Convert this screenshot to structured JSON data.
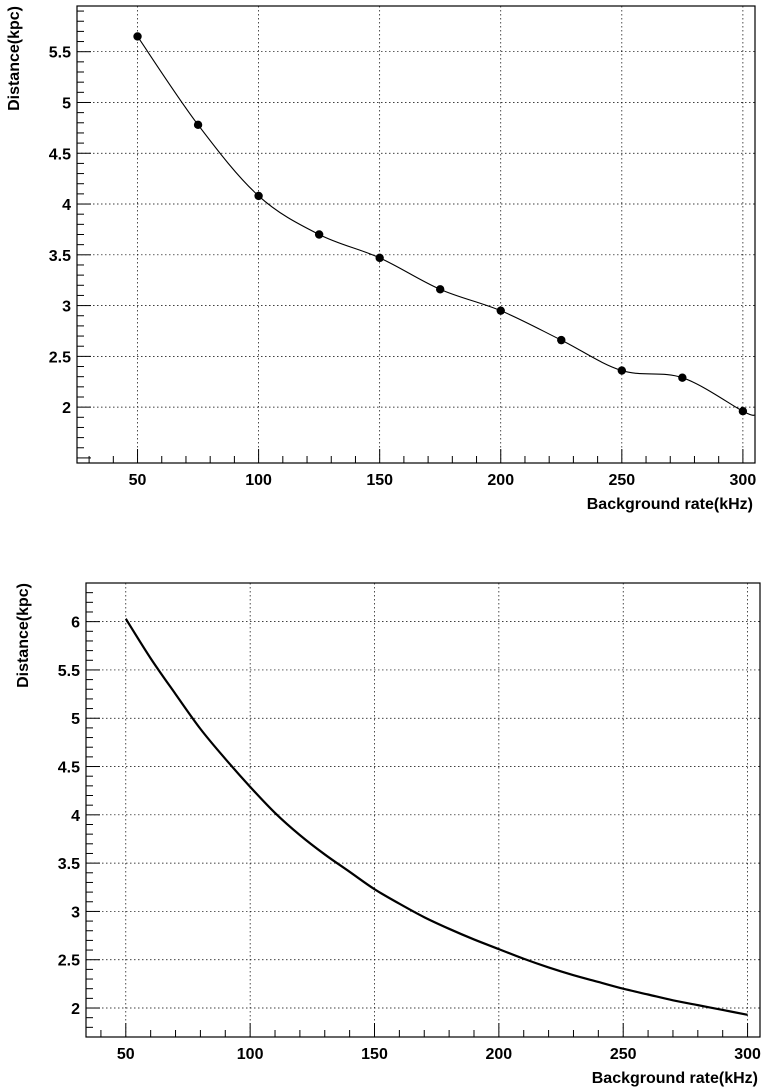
{
  "chart_data": [
    {
      "type": "scatter",
      "title": "",
      "xlabel": "Background rate(kHz)",
      "ylabel": "Distance(kpc)",
      "xlim": [
        25,
        305
      ],
      "ylim": [
        1.45,
        5.95
      ],
      "xticks": [
        50,
        100,
        150,
        200,
        250,
        300
      ],
      "yticks": [
        2,
        2.5,
        3,
        3.5,
        4,
        4.5,
        5,
        5.5
      ],
      "grid": true,
      "marker": "filled-circle",
      "line": "smooth curve through points",
      "series": [
        {
          "x": [
            50,
            75,
            100,
            125,
            150,
            175,
            200,
            225,
            250,
            275,
            300
          ],
          "y": [
            5.65,
            4.78,
            4.08,
            3.7,
            3.47,
            3.16,
            2.95,
            2.66,
            2.36,
            2.29,
            1.96
          ]
        }
      ]
    },
    {
      "type": "line",
      "title": "",
      "xlabel": "Background rate(kHz)",
      "ylabel": "Distance(kpc)",
      "xlim": [
        34,
        305
      ],
      "ylim": [
        1.7,
        6.4
      ],
      "xticks": [
        50,
        100,
        150,
        200,
        250,
        300
      ],
      "yticks": [
        2,
        2.5,
        3,
        3.5,
        4,
        4.5,
        5,
        5.5,
        6
      ],
      "grid": true,
      "series": [
        {
          "x": [
            50,
            60,
            70,
            80,
            90,
            100,
            110,
            120,
            130,
            140,
            150,
            160,
            170,
            180,
            190,
            200,
            210,
            220,
            230,
            240,
            250,
            260,
            270,
            280,
            290,
            300
          ],
          "y": [
            6.03,
            5.62,
            5.25,
            4.89,
            4.58,
            4.29,
            4.02,
            3.79,
            3.59,
            3.41,
            3.23,
            3.08,
            2.94,
            2.82,
            2.71,
            2.61,
            2.51,
            2.42,
            2.34,
            2.27,
            2.2,
            2.14,
            2.08,
            2.03,
            1.98,
            1.93
          ]
        }
      ]
    }
  ]
}
